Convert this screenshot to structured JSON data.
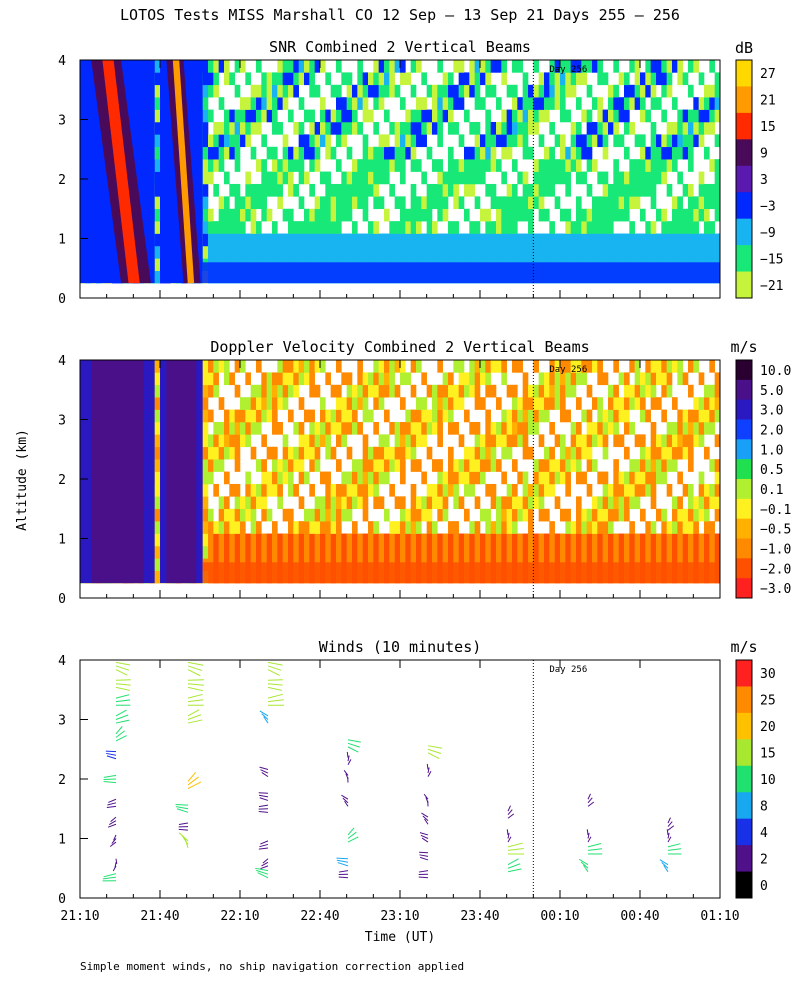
{
  "figure_title": "LOTOS Tests MISS Marshall CO  12 Sep — 13 Sep 21 Days 255 — 256",
  "y_axis_label": "Altitude (km)",
  "x_axis_label": "Time (UT)",
  "footnote": "Simple moment winds, no ship navigation correction applied",
  "day_marker_label": "Day 256",
  "chart_data": [
    {
      "type": "heatmap",
      "title": "SNR Combined 2 Vertical Beams",
      "xlabel": "",
      "ylabel": "Altitude (km)",
      "ylim": [
        0,
        4
      ],
      "yticks": [
        "0",
        "1",
        "2",
        "3",
        "4"
      ],
      "x_range_minutes_after_21_10": [
        0,
        240
      ],
      "colorbar": {
        "unit": "dB",
        "labels": [
          "27",
          "21",
          "15",
          "9",
          "3",
          "−3",
          "−9",
          "−15",
          "−21"
        ],
        "colors": [
          "#ffd800",
          "#ff9a00",
          "#ff2a00",
          "#4a0a5a",
          "#5a1ab0",
          "#0028ff",
          "#18b4f2",
          "#18e878",
          "#c6f43c"
        ]
      },
      "day_marker_minutes": 170,
      "features": [
        {
          "kind": "band",
          "name": "left-plume",
          "t_start": 0,
          "t_end": 28,
          "alt_min": 0.25,
          "alt_max": 4.0,
          "peak_value_db": 15
        },
        {
          "kind": "band",
          "name": "right-plume",
          "t_start": 30,
          "t_end": 46,
          "alt_min": 0.25,
          "alt_max": 4.0,
          "peak_value_db": 21
        },
        {
          "kind": "layer",
          "name": "boundary-layer",
          "t_start": 0,
          "t_end": 240,
          "alt_min": 0.25,
          "alt_max": 0.7,
          "value_db": -3
        }
      ]
    },
    {
      "type": "heatmap",
      "title": "Doppler Velocity Combined 2 Vertical Beams",
      "xlabel": "",
      "ylabel": "Altitude (km)",
      "ylim": [
        0,
        4
      ],
      "yticks": [
        "0",
        "1",
        "2",
        "3",
        "4"
      ],
      "x_range_minutes_after_21_10": [
        0,
        240
      ],
      "colorbar": {
        "unit": "m/s",
        "labels": [
          "10.0",
          "5.0",
          "3.0",
          "2.0",
          "1.0",
          "0.5",
          "0.1",
          "−0.1",
          "−0.5",
          "−1.0",
          "−2.0",
          "−3.0"
        ],
        "colors": [
          "#2a0030",
          "#4a108a",
          "#2a18c0",
          "#1040ff",
          "#18a0f8",
          "#20e050",
          "#b0f030",
          "#fff020",
          "#ffb000",
          "#ff8a00",
          "#ff5000",
          "#ff2020"
        ]
      },
      "day_marker_minutes": 170,
      "features": [
        {
          "kind": "band",
          "name": "left-plume",
          "t_start": 0,
          "t_end": 28,
          "alt_min": 0.25,
          "alt_max": 4.0,
          "value_ms": 5.0
        },
        {
          "kind": "band",
          "name": "right-plume",
          "t_start": 30,
          "t_end": 46,
          "alt_min": 0.25,
          "alt_max": 4.0,
          "value_ms": 5.0
        },
        {
          "kind": "layer",
          "name": "low-level-downdraft",
          "t_start": 46,
          "t_end": 240,
          "alt_min": 0.25,
          "alt_max": 1.0,
          "value_ms": -1.0
        }
      ]
    },
    {
      "type": "scatter",
      "title": "Winds (10 minutes)",
      "xlabel": "Time (UT)",
      "ylabel": "Altitude (km)",
      "ylim": [
        0,
        4
      ],
      "yticks": [
        "0",
        "1",
        "2",
        "3",
        "4"
      ],
      "x_tick_labels": [
        "21:10",
        "21:40",
        "22:10",
        "22:40",
        "23:10",
        "23:40",
        "00:10",
        "00:40",
        "01:10"
      ],
      "x_range_minutes_after_21_10": [
        0,
        240
      ],
      "colorbar": {
        "unit": "m/s",
        "labels": [
          "30",
          "25",
          "20",
          "15",
          "10",
          "8",
          "4",
          "2",
          "0"
        ],
        "colors": [
          "#ff2020",
          "#ff8a00",
          "#ffc000",
          "#a8e830",
          "#20e070",
          "#18a8f0",
          "#1830e8",
          "#50108a",
          "#000000"
        ]
      },
      "day_marker_minutes": 170,
      "profiles": [
        {
          "time_min": 15,
          "points": [
            [
              3.9,
              15
            ],
            [
              3.6,
              15
            ],
            [
              3.3,
              14
            ],
            [
              3.0,
              14
            ],
            [
              2.7,
              13
            ],
            [
              2.4,
              5
            ],
            [
              2.0,
              10
            ],
            [
              1.6,
              3
            ],
            [
              1.3,
              3
            ],
            [
              1.0,
              3
            ],
            [
              0.6,
              2
            ],
            [
              0.35,
              12
            ]
          ]
        },
        {
          "time_min": 42,
          "points": [
            [
              3.9,
              18
            ],
            [
              3.6,
              18
            ],
            [
              3.3,
              17
            ],
            [
              3.0,
              16
            ],
            [
              1.9,
              20
            ],
            [
              1.5,
              10
            ],
            [
              1.2,
              3
            ],
            [
              0.9,
              18
            ]
          ]
        },
        {
          "time_min": 72,
          "points": [
            [
              3.9,
              16
            ],
            [
              3.6,
              15
            ],
            [
              3.3,
              18
            ],
            [
              3.0,
              8
            ],
            [
              2.1,
              3
            ],
            [
              1.7,
              3
            ],
            [
              1.5,
              3
            ],
            [
              0.9,
              3
            ],
            [
              0.6,
              2
            ],
            [
              0.4,
              12
            ]
          ]
        },
        {
          "time_min": 102,
          "points": [
            [
              2.6,
              12
            ],
            [
              2.3,
              3
            ],
            [
              2.0,
              3
            ],
            [
              1.6,
              3
            ],
            [
              1.0,
              12
            ],
            [
              0.6,
              8
            ],
            [
              0.4,
              3
            ]
          ]
        },
        {
          "time_min": 132,
          "points": [
            [
              2.5,
              15
            ],
            [
              2.1,
              3
            ],
            [
              1.6,
              3
            ],
            [
              1.3,
              3
            ],
            [
              1.0,
              2
            ],
            [
              0.7,
              2
            ],
            [
              0.4,
              3
            ]
          ]
        },
        {
          "time_min": 162,
          "points": [
            [
              1.4,
              3
            ],
            [
              1.0,
              3
            ],
            [
              0.8,
              18
            ],
            [
              0.5,
              14
            ]
          ]
        },
        {
          "time_min": 192,
          "points": [
            [
              1.6,
              3
            ],
            [
              1.0,
              3
            ],
            [
              0.8,
              14
            ],
            [
              0.5,
              10
            ]
          ]
        },
        {
          "time_min": 222,
          "points": [
            [
              1.2,
              3
            ],
            [
              1.0,
              3
            ],
            [
              0.8,
              12
            ],
            [
              0.5,
              8
            ]
          ]
        }
      ]
    }
  ]
}
